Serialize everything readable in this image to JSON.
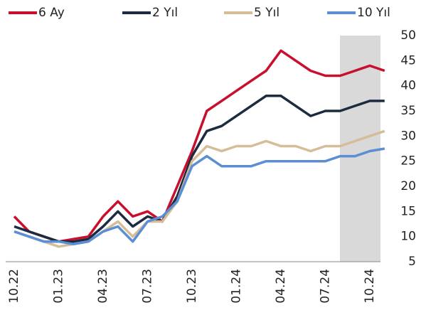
{
  "chart_data": {
    "type": "line",
    "categories": [
      "10.22",
      null,
      null,
      "01.23",
      null,
      null,
      "04.23",
      null,
      null,
      "07.23",
      null,
      null,
      "10.23",
      null,
      null,
      "01.24",
      null,
      null,
      "04.24",
      null,
      null,
      "07.24",
      null,
      null,
      "10.24",
      null
    ],
    "series": [
      {
        "name": "6 Ay",
        "color": "#c8102e",
        "values": [
          14,
          11,
          10,
          9,
          9.5,
          10,
          14,
          17,
          14,
          15,
          13,
          20,
          27,
          35,
          37,
          39,
          41,
          43,
          47,
          45,
          43,
          42,
          42,
          43,
          44,
          43
        ]
      },
      {
        "name": "2 Yıl",
        "color": "#1c2b40",
        "values": [
          12,
          11,
          10,
          9,
          9,
          9.5,
          12,
          15,
          12,
          14,
          13,
          18,
          26,
          31,
          32,
          34,
          36,
          38,
          38,
          36,
          34,
          35,
          35,
          36,
          37,
          37
        ]
      },
      {
        "name": "5 Yıl",
        "color": "#d5bd97",
        "values": [
          11,
          10,
          9,
          8,
          8.5,
          9,
          11,
          13,
          10,
          13,
          13,
          17,
          25,
          28,
          27,
          28,
          28,
          29,
          28,
          28,
          27,
          28,
          28,
          29,
          30,
          31
        ]
      },
      {
        "name": "10 Yıl",
        "color": "#5b8ed2",
        "values": [
          11,
          10,
          9,
          9,
          8.5,
          9,
          11,
          12,
          9,
          13,
          14,
          17,
          24,
          26,
          24,
          24,
          24,
          25,
          25,
          25,
          25,
          25,
          26,
          26,
          27,
          27.5
        ]
      }
    ],
    "ylim": [
      5,
      50
    ],
    "yticks": [
      5,
      10,
      15,
      20,
      25,
      30,
      35,
      40,
      45,
      50
    ],
    "y_axis_side": "right",
    "grid": false
  }
}
